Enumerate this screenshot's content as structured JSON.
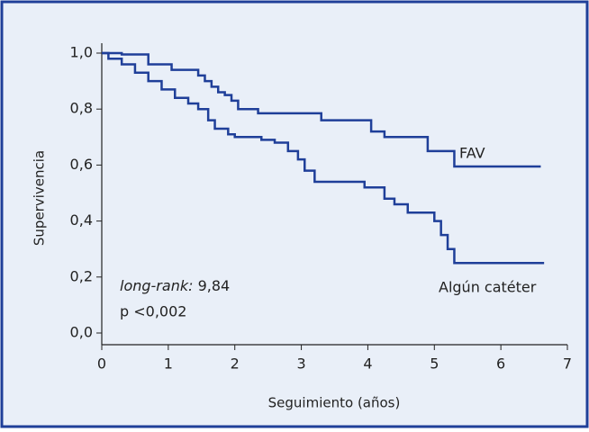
{
  "chart_data": {
    "type": "step",
    "xlabel": "Seguimiento (años)",
    "ylabel": "Supervivencia",
    "annotations": {
      "test_label": "long-rank:",
      "test_value": "9,84",
      "p_value": "p <0,002"
    },
    "xlim": [
      0,
      7
    ],
    "xticks": [
      0,
      1,
      2,
      3,
      4,
      5,
      6,
      7
    ],
    "ylim": [
      0,
      1
    ],
    "yticks": [
      {
        "value": 0,
        "label": "0,0"
      },
      {
        "value": 0.2,
        "label": "0,2"
      },
      {
        "value": 0.4,
        "label": "0,4"
      },
      {
        "value": 0.6,
        "label": "0,6"
      },
      {
        "value": 0.8,
        "label": "0,8"
      },
      {
        "value": 1,
        "label": "1,0"
      }
    ],
    "series": [
      {
        "name": "FAV",
        "color": "#1f3f99",
        "x": [
          0,
          0.3,
          0.7,
          1.05,
          1.45,
          1.55,
          1.65,
          1.75,
          1.85,
          1.95,
          2.05,
          2.35,
          3.3,
          4.05,
          4.25,
          4.9,
          5.3,
          6.6
        ],
        "values": [
          1.0,
          0.995,
          0.96,
          0.94,
          0.92,
          0.9,
          0.88,
          0.86,
          0.85,
          0.83,
          0.8,
          0.785,
          0.76,
          0.72,
          0.7,
          0.65,
          0.595,
          0.595
        ]
      },
      {
        "name": "Algún catéter",
        "color": "#1f3f99",
        "x": [
          0,
          0.1,
          0.3,
          0.5,
          0.7,
          0.9,
          1.1,
          1.3,
          1.45,
          1.6,
          1.7,
          1.9,
          2.0,
          2.4,
          2.6,
          2.8,
          2.95,
          3.05,
          3.2,
          3.95,
          4.25,
          4.4,
          4.6,
          5.0,
          5.1,
          5.2,
          5.3,
          6.65
        ],
        "values": [
          1.0,
          0.98,
          0.96,
          0.93,
          0.9,
          0.87,
          0.84,
          0.82,
          0.8,
          0.76,
          0.73,
          0.71,
          0.7,
          0.69,
          0.68,
          0.65,
          0.62,
          0.58,
          0.54,
          0.52,
          0.48,
          0.46,
          0.43,
          0.4,
          0.35,
          0.3,
          0.25,
          0.25
        ]
      }
    ]
  }
}
